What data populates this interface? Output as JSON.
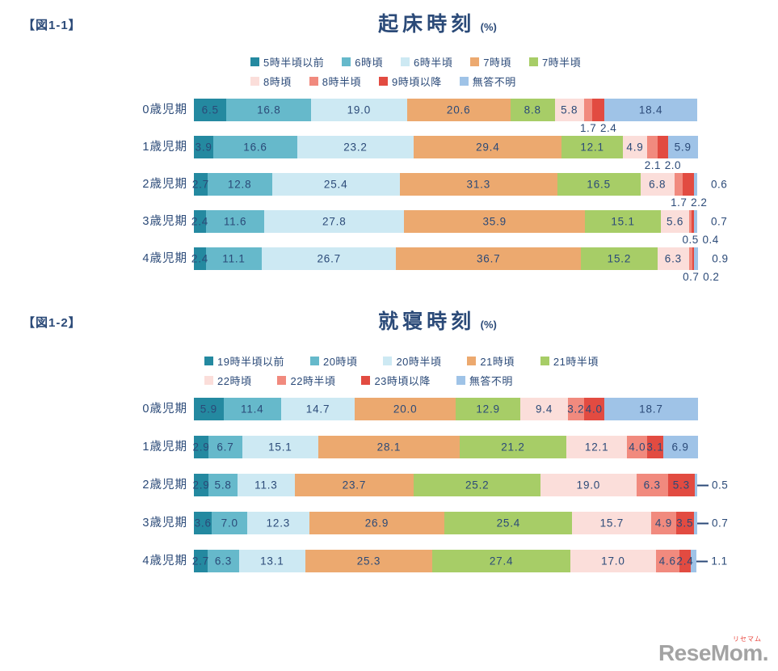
{
  "page": {
    "background": "#ffffff",
    "text_color": "#2b4a78"
  },
  "palette": [
    "#2489a0",
    "#66b9cb",
    "#cde9f3",
    "#eca96f",
    "#a7cd67",
    "#fbdeda",
    "#f18a7e",
    "#e24b41",
    "#9fc3e7"
  ],
  "watermark": {
    "brand": "ReseMom.",
    "brand_ruby": "リセマム",
    "brand_color": "#a3a3a3",
    "ruby_color": "#e8453c"
  },
  "chart_data": [
    {
      "type": "bar",
      "variant": "stacked-horizontal",
      "fig_label": "【図1-1】",
      "title": "起床時刻",
      "unit": "(%)",
      "xlim": [
        0,
        100
      ],
      "legend_position": "top",
      "legend_split": 5,
      "legend": [
        "5時半頃以前",
        "6時頃",
        "6時半頃",
        "7時頃",
        "7時半頃",
        "8時頃",
        "8時半頃",
        "9時頃以降",
        "無答不明"
      ],
      "categories": [
        "0歳児期",
        "1歳児期",
        "2歳児期",
        "3歳児期",
        "4歳児期"
      ],
      "rows": [
        {
          "category": "0歳児期",
          "values": [
            6.5,
            16.8,
            19.0,
            20.6,
            8.8,
            5.8,
            1.7,
            2.4,
            18.4
          ],
          "label_pos": [
            "in",
            "in",
            "in",
            "in",
            "in",
            "in",
            "below",
            "below",
            "in"
          ]
        },
        {
          "category": "1歳児期",
          "values": [
            3.9,
            16.6,
            23.2,
            29.4,
            12.1,
            4.9,
            2.1,
            2.0,
            5.9
          ],
          "label_pos": [
            "in",
            "in",
            "in",
            "in",
            "in",
            "in",
            "below",
            "below",
            "in"
          ]
        },
        {
          "category": "2歳児期",
          "values": [
            2.7,
            12.8,
            25.4,
            31.3,
            16.5,
            6.8,
            1.7,
            2.2,
            0.6
          ],
          "label_pos": [
            "in",
            "in",
            "in",
            "in",
            "in",
            "in",
            "below",
            "below",
            "right"
          ]
        },
        {
          "category": "3歳児期",
          "values": [
            2.4,
            11.6,
            27.8,
            35.9,
            15.1,
            5.6,
            0.5,
            0.4,
            0.7
          ],
          "label_pos": [
            "in",
            "in",
            "in",
            "in",
            "in",
            "in",
            "below",
            "below",
            "right"
          ]
        },
        {
          "category": "4歳児期",
          "values": [
            2.4,
            11.1,
            26.7,
            36.7,
            15.2,
            6.3,
            0.7,
            0.2,
            0.9
          ],
          "label_pos": [
            "in",
            "in",
            "in",
            "in",
            "in",
            "in",
            "below",
            "below",
            "right"
          ]
        }
      ],
      "right_label_dash": false
    },
    {
      "type": "bar",
      "variant": "stacked-horizontal",
      "fig_label": "【図1-2】",
      "title": "就寝時刻",
      "unit": "(%)",
      "xlim": [
        0,
        100
      ],
      "legend_position": "top",
      "legend_split": 5,
      "legend": [
        "19時半頃以前",
        "20時頃",
        "20時半頃",
        "21時頃",
        "21時半頃",
        "22時頃",
        "22時半頃",
        "23時頃以降",
        "無答不明"
      ],
      "categories": [
        "0歳児期",
        "1歳児期",
        "2歳児期",
        "3歳児期",
        "4歳児期"
      ],
      "rows": [
        {
          "category": "0歳児期",
          "values": [
            5.9,
            11.4,
            14.7,
            20.0,
            12.9,
            9.4,
            3.2,
            4.0,
            18.7
          ],
          "label_pos": [
            "in",
            "in",
            "in",
            "in",
            "in",
            "in",
            "in",
            "in",
            "in"
          ]
        },
        {
          "category": "1歳児期",
          "values": [
            2.9,
            6.7,
            15.1,
            28.1,
            21.2,
            12.1,
            4.0,
            3.1,
            6.9
          ],
          "label_pos": [
            "in",
            "in",
            "in",
            "in",
            "in",
            "in",
            "in",
            "in",
            "in"
          ]
        },
        {
          "category": "2歳児期",
          "values": [
            2.9,
            5.8,
            11.3,
            23.7,
            25.2,
            19.0,
            6.3,
            5.3,
            0.5
          ],
          "label_pos": [
            "in",
            "in",
            "in",
            "in",
            "in",
            "in",
            "in",
            "in",
            "right"
          ]
        },
        {
          "category": "3歳児期",
          "values": [
            3.6,
            7.0,
            12.3,
            26.9,
            25.4,
            15.7,
            4.9,
            3.5,
            0.7
          ],
          "label_pos": [
            "in",
            "in",
            "in",
            "in",
            "in",
            "in",
            "in",
            "in",
            "right"
          ]
        },
        {
          "category": "4歳児期",
          "values": [
            2.7,
            6.3,
            13.1,
            25.3,
            27.4,
            17.0,
            4.6,
            2.4,
            1.1
          ],
          "label_pos": [
            "in",
            "in",
            "in",
            "in",
            "in",
            "in",
            "in",
            "in",
            "right"
          ]
        }
      ],
      "right_label_dash": true
    }
  ]
}
